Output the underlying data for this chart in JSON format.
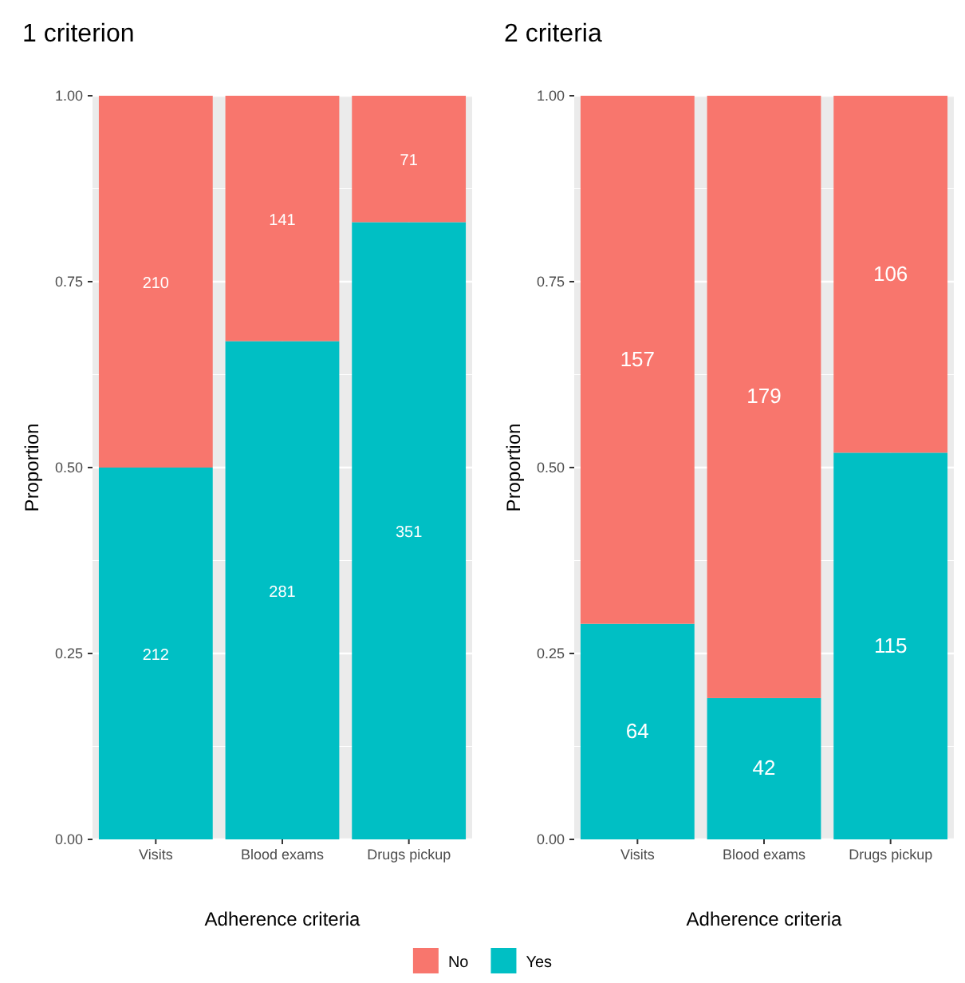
{
  "chart_data": [
    {
      "type": "bar",
      "title": "1 criterion",
      "xlabel": "Adherence criteria",
      "ylabel": "Proportion",
      "categories": [
        "Visits",
        "Blood exams",
        "Drugs pickup"
      ],
      "stacked": true,
      "ylim": [
        0,
        1
      ],
      "yticks": [
        {
          "value": 0,
          "label": "0.00"
        },
        {
          "value": 0.25,
          "label": "0.25"
        },
        {
          "value": 0.5,
          "label": "0.50"
        },
        {
          "value": 0.75,
          "label": "0.75"
        },
        {
          "value": 1,
          "label": "1.00"
        }
      ],
      "grid": true,
      "legend": "bottom",
      "series": [
        {
          "name": "Yes",
          "color": "#00bfc4",
          "values": [
            0.5,
            0.67,
            0.83
          ]
        },
        {
          "name": "No",
          "color": "#f8766d",
          "values": [
            0.5,
            0.33,
            0.17
          ]
        }
      ],
      "annotations": [
        "212",
        "281",
        "351",
        "210",
        "141",
        "71"
      ]
    },
    {
      "type": "bar",
      "title": "2 criteria",
      "xlabel": "Adherence criteria",
      "ylabel": "Proportion",
      "categories": [
        "Visits",
        "Blood exams",
        "Drugs pickup"
      ],
      "stacked": true,
      "ylim": [
        0,
        1
      ],
      "yticks": [
        {
          "value": 0,
          "label": "0.00"
        },
        {
          "value": 0.25,
          "label": "0.25"
        },
        {
          "value": 0.5,
          "label": "0.50"
        },
        {
          "value": 0.75,
          "label": "0.75"
        },
        {
          "value": 1,
          "label": "1.00"
        }
      ],
      "grid": true,
      "legend": "bottom",
      "series": [
        {
          "name": "Yes",
          "color": "#00bfc4",
          "values": [
            0.29,
            0.19,
            0.52
          ]
        },
        {
          "name": "No",
          "color": "#f8766d",
          "values": [
            0.71,
            0.81,
            0.48
          ]
        }
      ],
      "annotations": [
        "64",
        "42",
        "115",
        "157",
        "179",
        "106"
      ]
    }
  ]
}
